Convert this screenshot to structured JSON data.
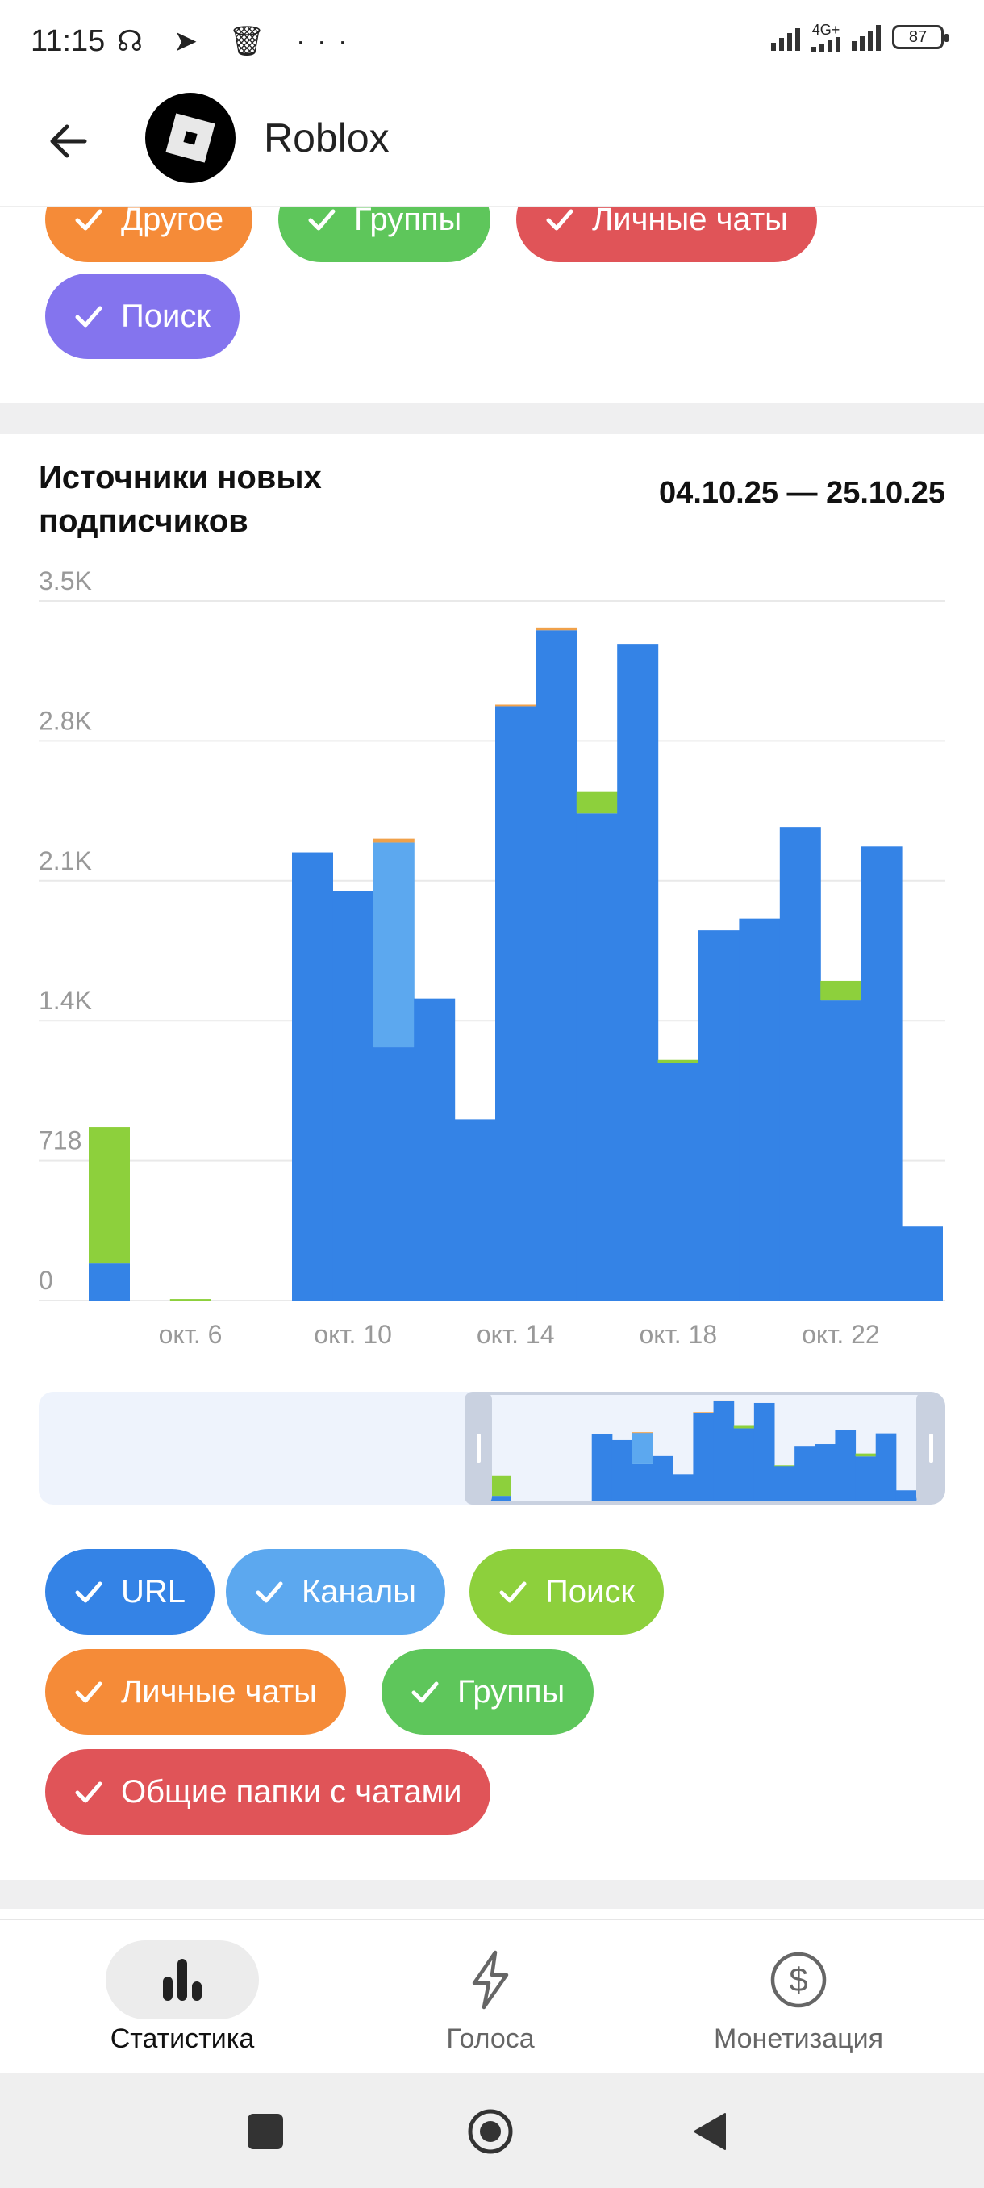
{
  "status_bar": {
    "time": "11:15",
    "left_icons": "☊ ➤ 🗑 ···",
    "network": "4G+",
    "battery": "87"
  },
  "header": {
    "title": "Roblox",
    "back_icon": "arrow-left-icon",
    "avatar_icon": "roblox-logo"
  },
  "top_filters": [
    {
      "label": "Другое",
      "color": "#f58b38"
    },
    {
      "label": "Группы",
      "color": "#5ec65b"
    },
    {
      "label": "Личные чаты",
      "color": "#e05458"
    },
    {
      "label": "Поиск",
      "color": "#8474ee"
    }
  ],
  "card": {
    "title": "Источники новых подписчиков",
    "date_range": "04.10.25 — 25.10.25"
  },
  "chart_data": {
    "type": "bar",
    "stacked": true,
    "y_ticks": [
      "0",
      "718",
      "1.4K",
      "2.1K",
      "2.8K",
      "3.5K"
    ],
    "x_ticks": [
      "окт. 6",
      "окт. 10",
      "окт. 14",
      "окт. 18",
      "окт. 22"
    ],
    "ylim": [
      0,
      3590
    ],
    "categories": [
      "04.10",
      "05.10",
      "06.10",
      "07.10",
      "08.10",
      "09.10",
      "10.10",
      "11.10",
      "12.10",
      "13.10",
      "14.10",
      "15.10",
      "16.10",
      "17.10",
      "18.10",
      "19.10",
      "20.10",
      "21.10",
      "22.10",
      "23.10",
      "24.10"
    ],
    "series": [
      {
        "name": "URL",
        "color": "#3483e6",
        "values": [
          190,
          0,
          0,
          0,
          0,
          2300,
          2100,
          1300,
          1550,
          930,
          3050,
          3440,
          2500,
          3370,
          1220,
          1900,
          1960,
          2430,
          1540,
          2330,
          380
        ]
      },
      {
        "name": "Каналы",
        "color": "#5ca8ef",
        "values": [
          0,
          0,
          0,
          0,
          0,
          0,
          0,
          1050,
          0,
          0,
          0,
          0,
          0,
          0,
          0,
          0,
          0,
          0,
          0,
          0,
          0
        ]
      },
      {
        "name": "Поиск",
        "color": "#8dd03c",
        "values": [
          700,
          0,
          8,
          0,
          0,
          0,
          0,
          0,
          0,
          0,
          0,
          0,
          110,
          0,
          15,
          0,
          0,
          0,
          100,
          0,
          0
        ]
      },
      {
        "name": "Личные чаты",
        "color": "#f0a14a",
        "values": [
          0,
          0,
          0,
          0,
          0,
          0,
          0,
          20,
          0,
          0,
          8,
          14,
          0,
          0,
          0,
          0,
          0,
          0,
          0,
          0,
          0
        ]
      },
      {
        "name": "Группы",
        "color": "#4cbf4c",
        "values": [
          0,
          0,
          0,
          0,
          0,
          0,
          0,
          0,
          0,
          0,
          0,
          0,
          0,
          0,
          0,
          0,
          0,
          0,
          0,
          0,
          0
        ]
      },
      {
        "name": "Общие папки с чатами",
        "color": "#e05458",
        "values": [
          0,
          0,
          0,
          0,
          0,
          0,
          0,
          0,
          0,
          0,
          0,
          0,
          0,
          0,
          0,
          0,
          0,
          0,
          0,
          0,
          0
        ]
      }
    ]
  },
  "legend_filters": [
    {
      "label": "URL",
      "color": "#3483e6"
    },
    {
      "label": "Каналы",
      "color": "#5ca8ef"
    },
    {
      "label": "Поиск",
      "color": "#8dd03c"
    },
    {
      "label": "Личные чаты",
      "color": "#f58b38"
    },
    {
      "label": "Группы",
      "color": "#5ec65b"
    },
    {
      "label": "Общие папки с чатами",
      "color": "#e05458"
    }
  ],
  "bottom_nav": [
    {
      "label": "Статистика",
      "icon": "bar-chart-icon",
      "active": true
    },
    {
      "label": "Голоса",
      "icon": "lightning-icon",
      "active": false
    },
    {
      "label": "Монетизация",
      "icon": "dollar-circle-icon",
      "active": false
    }
  ]
}
